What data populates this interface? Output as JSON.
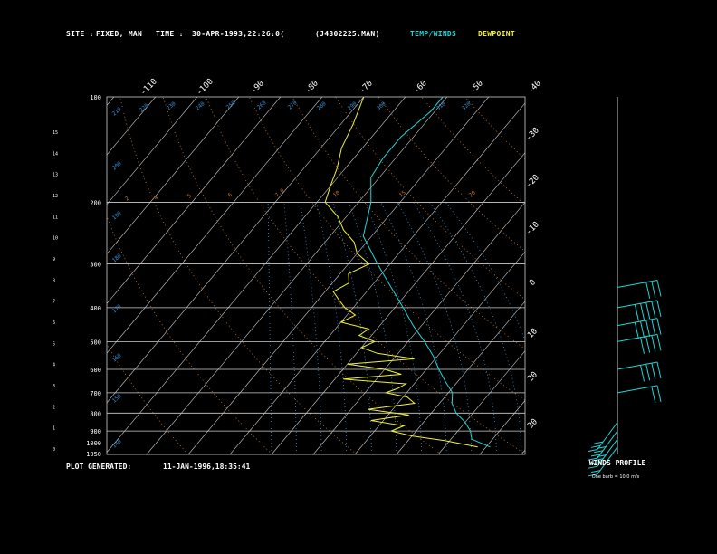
{
  "header": {
    "site_label": "SITE :",
    "site_value": "FIXED, MAN",
    "time_label": "TIME :",
    "time_value": "30-APR-1993,22:26:0(",
    "file_id": "(J4302225.MAN)",
    "legend_temp": "TEMP/WINDS",
    "legend_dew": "DEWPOINT"
  },
  "footer": {
    "generated_label": "PLOT GENERATED:",
    "generated_value": "11-JAN-1996,18:35:41"
  },
  "wind_panel": {
    "title": "WINDS PROFILE",
    "note": "One barb = 10.0 m/s"
  },
  "colors": {
    "background": "#000000",
    "temp": "#1fd6d6",
    "dewpoint": "#f2f233",
    "grid": "#cfcfcf",
    "mixing_ratio": "#cc7733",
    "moist_adiabat": "#3a8fd0",
    "winds": "#1fd6d6"
  },
  "chart_data": {
    "type": "line",
    "subtype": "skew-T log-p sounding",
    "y_axis_pressure_mb": [
      100,
      200,
      300,
      400,
      500,
      600,
      700,
      800,
      900,
      1000,
      1050
    ],
    "y_axis_height_km": [
      15,
      14,
      13,
      12,
      11,
      10,
      9,
      8,
      7,
      6,
      5,
      4,
      3,
      2,
      1,
      0
    ],
    "top_temp_labels_c": [
      -110,
      -100,
      -90,
      -80,
      -70,
      -60,
      -50,
      -40
    ],
    "right_temp_labels_c": [
      -30,
      -20,
      -10,
      0,
      10,
      20,
      30
    ],
    "mixing_ratio_labels": [
      "2",
      "4",
      "5",
      "6",
      "7.0",
      "10",
      "15",
      "20"
    ],
    "adiabat_labels": [
      "140",
      "150",
      "160",
      "170",
      "180",
      "190",
      "200",
      "210",
      "220",
      "230",
      "240",
      "250",
      "260",
      "270",
      "280",
      "290",
      "300",
      "310",
      "320"
    ],
    "series": [
      {
        "name": "TEMP/WINDS",
        "color": "#1fd6d6",
        "pressure_mb": [
          1000,
          950,
          900,
          850,
          800,
          750,
          700,
          650,
          600,
          550,
          500,
          450,
          400,
          350,
          300,
          250,
          200,
          170,
          150,
          130,
          110,
          100
        ],
        "temp_c": [
          21,
          15,
          13,
          10,
          6,
          3,
          1,
          -3,
          -7,
          -11,
          -16,
          -22,
          -28,
          -35,
          -43,
          -52,
          -57,
          -62,
          -63,
          -63,
          -61,
          -61
        ]
      },
      {
        "name": "DEWPOINT",
        "color": "#f2f233",
        "pressure_mb": [
          1000,
          960,
          930,
          900,
          870,
          840,
          810,
          780,
          750,
          720,
          700,
          680,
          660,
          640,
          620,
          600,
          580,
          560,
          540,
          520,
          500,
          480,
          460,
          440,
          420,
          400,
          380,
          360,
          340,
          320,
          300,
          280,
          260,
          240,
          220,
          200,
          180,
          160,
          140,
          120,
          100
        ],
        "dewpoint_c": [
          18,
          9,
          0,
          -6,
          -4,
          -13,
          -5,
          -16,
          -6,
          -9,
          -15,
          -13,
          -12,
          -28,
          -15,
          -20,
          -30,
          -15,
          -25,
          -30,
          -28,
          -33,
          -32,
          -40,
          -38,
          -42,
          -45,
          -48,
          -46,
          -48,
          -45,
          -50,
          -53,
          -58,
          -62,
          -68,
          -70,
          -72,
          -75,
          -77,
          -80
        ]
      }
    ],
    "winds": [
      {
        "pressure_mb": 1000,
        "barbs": 2
      },
      {
        "pressure_mb": 950,
        "barbs": 4
      },
      {
        "pressure_mb": 900,
        "barbs": 4
      },
      {
        "pressure_mb": 850,
        "barbs": 3
      },
      {
        "pressure_mb": 700,
        "barbs": 2
      },
      {
        "pressure_mb": 600,
        "barbs": 4
      },
      {
        "pressure_mb": 500,
        "barbs": 4
      },
      {
        "pressure_mb": 450,
        "barbs": 5
      },
      {
        "pressure_mb": 400,
        "barbs": 5
      },
      {
        "pressure_mb": 350,
        "barbs": 3
      }
    ]
  }
}
